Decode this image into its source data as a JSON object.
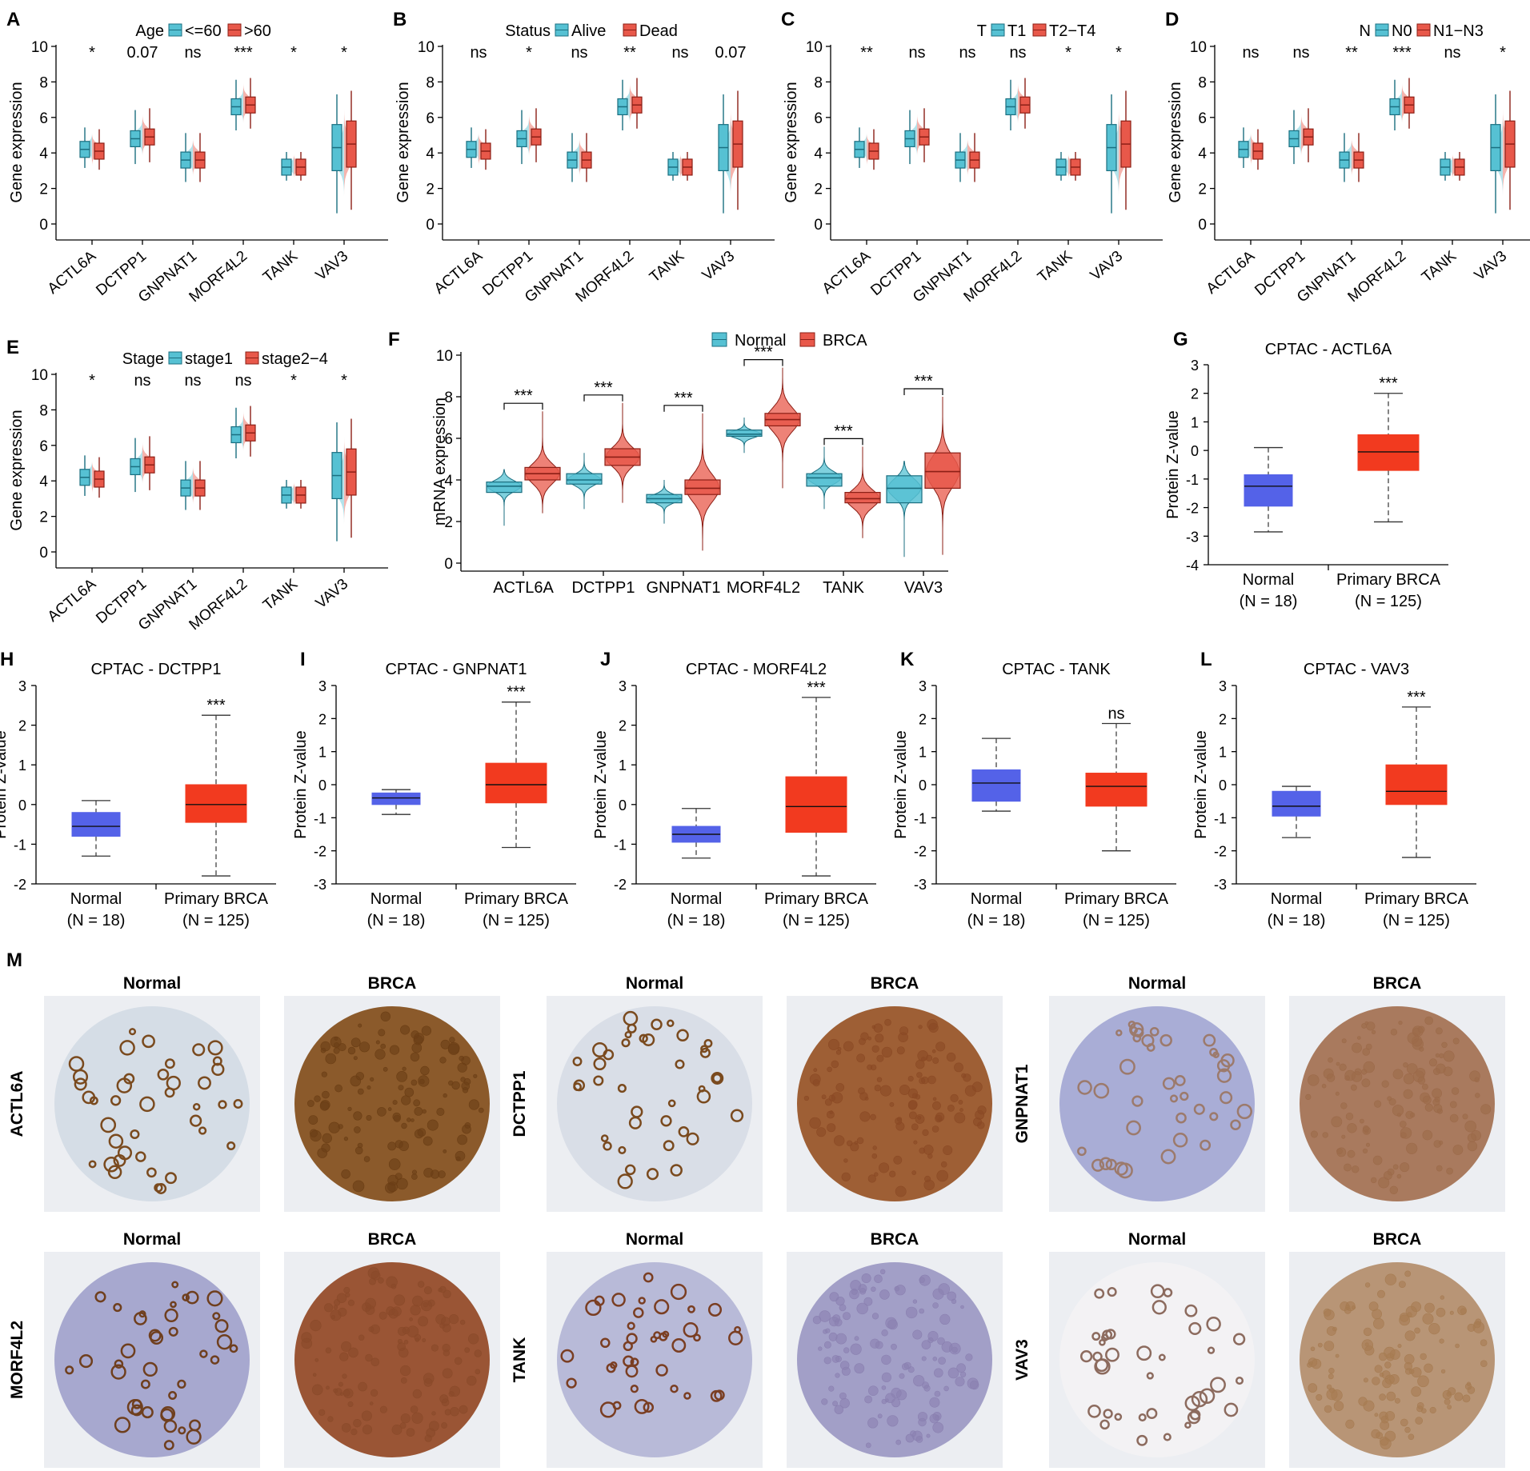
{
  "colors": {
    "cyan_fill": "#56C1D3",
    "cyan_line": "#1B6F80",
    "red_fill": "#E8584A",
    "red_line": "#8C1F16",
    "blue_box": "#5462E8",
    "red_box": "#F23A1F",
    "axis": "#000000",
    "ihc_bg": "#ECEEF2"
  },
  "clinical_panels": [
    {
      "label": "A",
      "legend_title": "Age",
      "groups": [
        "<=60",
        ">60"
      ],
      "ylabel": "Gene expression",
      "pvals": [
        "*",
        "0.07",
        "ns",
        "***",
        "*",
        "*"
      ]
    },
    {
      "label": "B",
      "legend_title": "Status",
      "groups": [
        "Alive",
        "Dead"
      ],
      "ylabel": "Gene expression",
      "pvals": [
        "ns",
        "*",
        "ns",
        "**",
        "ns",
        "0.07"
      ]
    },
    {
      "label": "C",
      "legend_title": "T",
      "groups": [
        "T1",
        "T2−T4"
      ],
      "ylabel": "Gene expression",
      "pvals": [
        "**",
        "ns",
        "ns",
        "ns",
        "*",
        "*"
      ]
    },
    {
      "label": "D",
      "legend_title": "N",
      "groups": [
        "N0",
        "N1−N3"
      ],
      "ylabel": "Gene expression",
      "pvals": [
        "ns",
        "ns",
        "**",
        "***",
        "ns",
        "*"
      ]
    },
    {
      "label": "E",
      "legend_title": "Stage",
      "groups": [
        "stage1",
        "stage2−4"
      ],
      "ylabel": "Gene expression",
      "pvals": [
        "*",
        "ns",
        "ns",
        "ns",
        "*",
        "*"
      ]
    }
  ],
  "chart_data": [
    {
      "type": "boxplot-violin",
      "panels": [
        "A",
        "B",
        "C",
        "D",
        "E"
      ],
      "categories": [
        "ACTL6A",
        "DCTPP1",
        "GNPNAT1",
        "MORF4L2",
        "TANK",
        "VAV3"
      ],
      "ylabel": "Gene expression",
      "ylim": [
        0,
        10
      ],
      "yticks": [
        0,
        2,
        4,
        6,
        8,
        10
      ],
      "median_estimates": {
        "group1": [
          4.2,
          4.8,
          3.6,
          6.6,
          3.2,
          4.3
        ],
        "group2": [
          4.1,
          4.9,
          3.6,
          6.7,
          3.2,
          4.5
        ]
      }
    },
    {
      "type": "violin-box",
      "panel": "F",
      "title": "",
      "legend": [
        "Normal",
        "BRCA"
      ],
      "categories": [
        "ACTL6A",
        "DCTPP1",
        "GNPNAT1",
        "MORF4L2",
        "TANK",
        "VAV3"
      ],
      "ylabel": "mRNA expression",
      "ylim": [
        0,
        10
      ],
      "yticks": [
        0,
        2,
        4,
        6,
        8,
        10
      ],
      "series": [
        {
          "name": "Normal",
          "median": [
            3.7,
            4.0,
            3.1,
            6.2,
            4.1,
            3.6
          ],
          "q1": [
            3.4,
            3.8,
            2.9,
            6.1,
            3.7,
            2.9
          ],
          "q3": [
            3.9,
            4.3,
            3.3,
            6.4,
            4.3,
            4.2
          ],
          "min": [
            1.8,
            2.6,
            1.9,
            5.3,
            2.6,
            0.3
          ],
          "max": [
            4.5,
            5.3,
            4.0,
            7.0,
            5.6,
            4.9
          ]
        },
        {
          "name": "BRCA",
          "median": [
            4.3,
            5.1,
            3.6,
            6.9,
            3.1,
            4.4
          ],
          "q1": [
            4.0,
            4.7,
            3.3,
            6.6,
            2.9,
            3.6
          ],
          "q3": [
            4.6,
            5.5,
            4.0,
            7.2,
            3.4,
            5.3
          ],
          "min": [
            2.4,
            2.9,
            0.6,
            3.6,
            1.2,
            0.4
          ],
          "max": [
            7.3,
            7.7,
            7.2,
            9.4,
            5.6,
            8.0
          ]
        }
      ],
      "significance": [
        "***",
        "***",
        "***",
        "***",
        "***",
        "***"
      ]
    },
    {
      "type": "boxplot",
      "panels": [
        {
          "label": "G",
          "title": "CPTAC - ACTL6A",
          "ylim": [
            -4,
            3
          ],
          "yticks": [
            -4,
            -3,
            -2,
            -1,
            0,
            1,
            2,
            3
          ],
          "sig": "***",
          "normal": {
            "min": -2.85,
            "q1": -1.95,
            "median": -1.25,
            "q3": -0.85,
            "max": 0.1
          },
          "tumor": {
            "min": -2.5,
            "q1": -0.7,
            "median": -0.05,
            "q3": 0.55,
            "max": 2.0
          }
        },
        {
          "label": "H",
          "title": "CPTAC - DCTPP1",
          "ylim": [
            -2,
            3
          ],
          "yticks": [
            -2,
            -1,
            0,
            1,
            2,
            3
          ],
          "sig": "***",
          "normal": {
            "min": -1.3,
            "q1": -0.8,
            "median": -0.55,
            "q3": -0.2,
            "max": 0.1
          },
          "tumor": {
            "min": -1.8,
            "q1": -0.45,
            "median": 0.0,
            "q3": 0.5,
            "max": 2.25
          }
        },
        {
          "label": "I",
          "title": "CPTAC - GNPNAT1",
          "ylim": [
            -3,
            3
          ],
          "yticks": [
            -3,
            -2,
            -1,
            0,
            1,
            2,
            3
          ],
          "sig": "***",
          "normal": {
            "min": -0.9,
            "q1": -0.6,
            "median": -0.4,
            "q3": -0.25,
            "max": -0.15
          },
          "tumor": {
            "min": -1.9,
            "q1": -0.55,
            "median": 0.0,
            "q3": 0.65,
            "max": 2.5
          }
        },
        {
          "label": "J",
          "title": "CPTAC - MORF4L2",
          "ylim": [
            -2,
            3
          ],
          "yticks": [
            -2,
            -1,
            0,
            1,
            2,
            3
          ],
          "sig": "***",
          "normal": {
            "min": -1.35,
            "q1": -0.95,
            "median": -0.75,
            "q3": -0.55,
            "max": -0.1
          },
          "tumor": {
            "min": -1.8,
            "q1": -0.7,
            "median": -0.05,
            "q3": 0.7,
            "max": 2.7
          }
        },
        {
          "label": "K",
          "title": "CPTAC - TANK",
          "ylim": [
            -3,
            3
          ],
          "yticks": [
            -3,
            -2,
            -1,
            0,
            1,
            2,
            3
          ],
          "sig": "ns",
          "normal": {
            "min": -0.8,
            "q1": -0.5,
            "median": 0.05,
            "q3": 0.45,
            "max": 1.4
          },
          "tumor": {
            "min": -2.0,
            "q1": -0.65,
            "median": -0.05,
            "q3": 0.35,
            "max": 1.85
          }
        },
        {
          "label": "L",
          "title": "CPTAC - VAV3",
          "ylim": [
            -3,
            3
          ],
          "yticks": [
            -3,
            -2,
            -1,
            0,
            1,
            2,
            3
          ],
          "sig": "***",
          "normal": {
            "min": -1.6,
            "q1": -0.95,
            "median": -0.65,
            "q3": -0.2,
            "max": -0.05
          },
          "tumor": {
            "min": -2.2,
            "q1": -0.6,
            "median": -0.2,
            "q3": 0.6,
            "max": 2.35
          }
        }
      ],
      "xlabels": [
        "Normal",
        "Primary BRCA"
      ],
      "nlabels": [
        "(N = 18)",
        "(N = 125)"
      ],
      "ylabel": "Protein Z-value"
    }
  ],
  "panel_m": {
    "label": "M",
    "col_headers": [
      "Normal",
      "BRCA"
    ],
    "rows": [
      [
        "ACTL6A",
        "DCTPP1",
        "GNPNAT1"
      ],
      [
        "MORF4L2",
        "TANK",
        "VAV3"
      ]
    ],
    "stain": [
      [
        {
          "normal": "#7A4A1E",
          "brca": "#6B3E15",
          "normal_bg": "#D5DDE6",
          "brca_bg": "#8B5A2B"
        },
        {
          "normal": "#7A4A1E",
          "brca": "#8B4A25",
          "normal_bg": "#D9DEE7",
          "brca_bg": "#9E5F35"
        },
        {
          "normal": "#9C7A6C",
          "brca": "#9C6A4A",
          "normal_bg": "#A9ADD6",
          "brca_bg": "#A97A5E"
        }
      ],
      [
        {
          "normal": "#6F3F1E",
          "brca": "#8A4A2A",
          "normal_bg": "#A7A8CF",
          "brca_bg": "#9A5535"
        },
        {
          "normal": "#7A3E22",
          "brca": "#8A80B0",
          "normal_bg": "#B8BAD8",
          "brca_bg": "#A29FC7"
        },
        {
          "normal": "#8C6B5E",
          "brca": "#A67C52",
          "normal_bg": "#F3F2F4",
          "brca_bg": "#B89576"
        }
      ]
    ]
  }
}
